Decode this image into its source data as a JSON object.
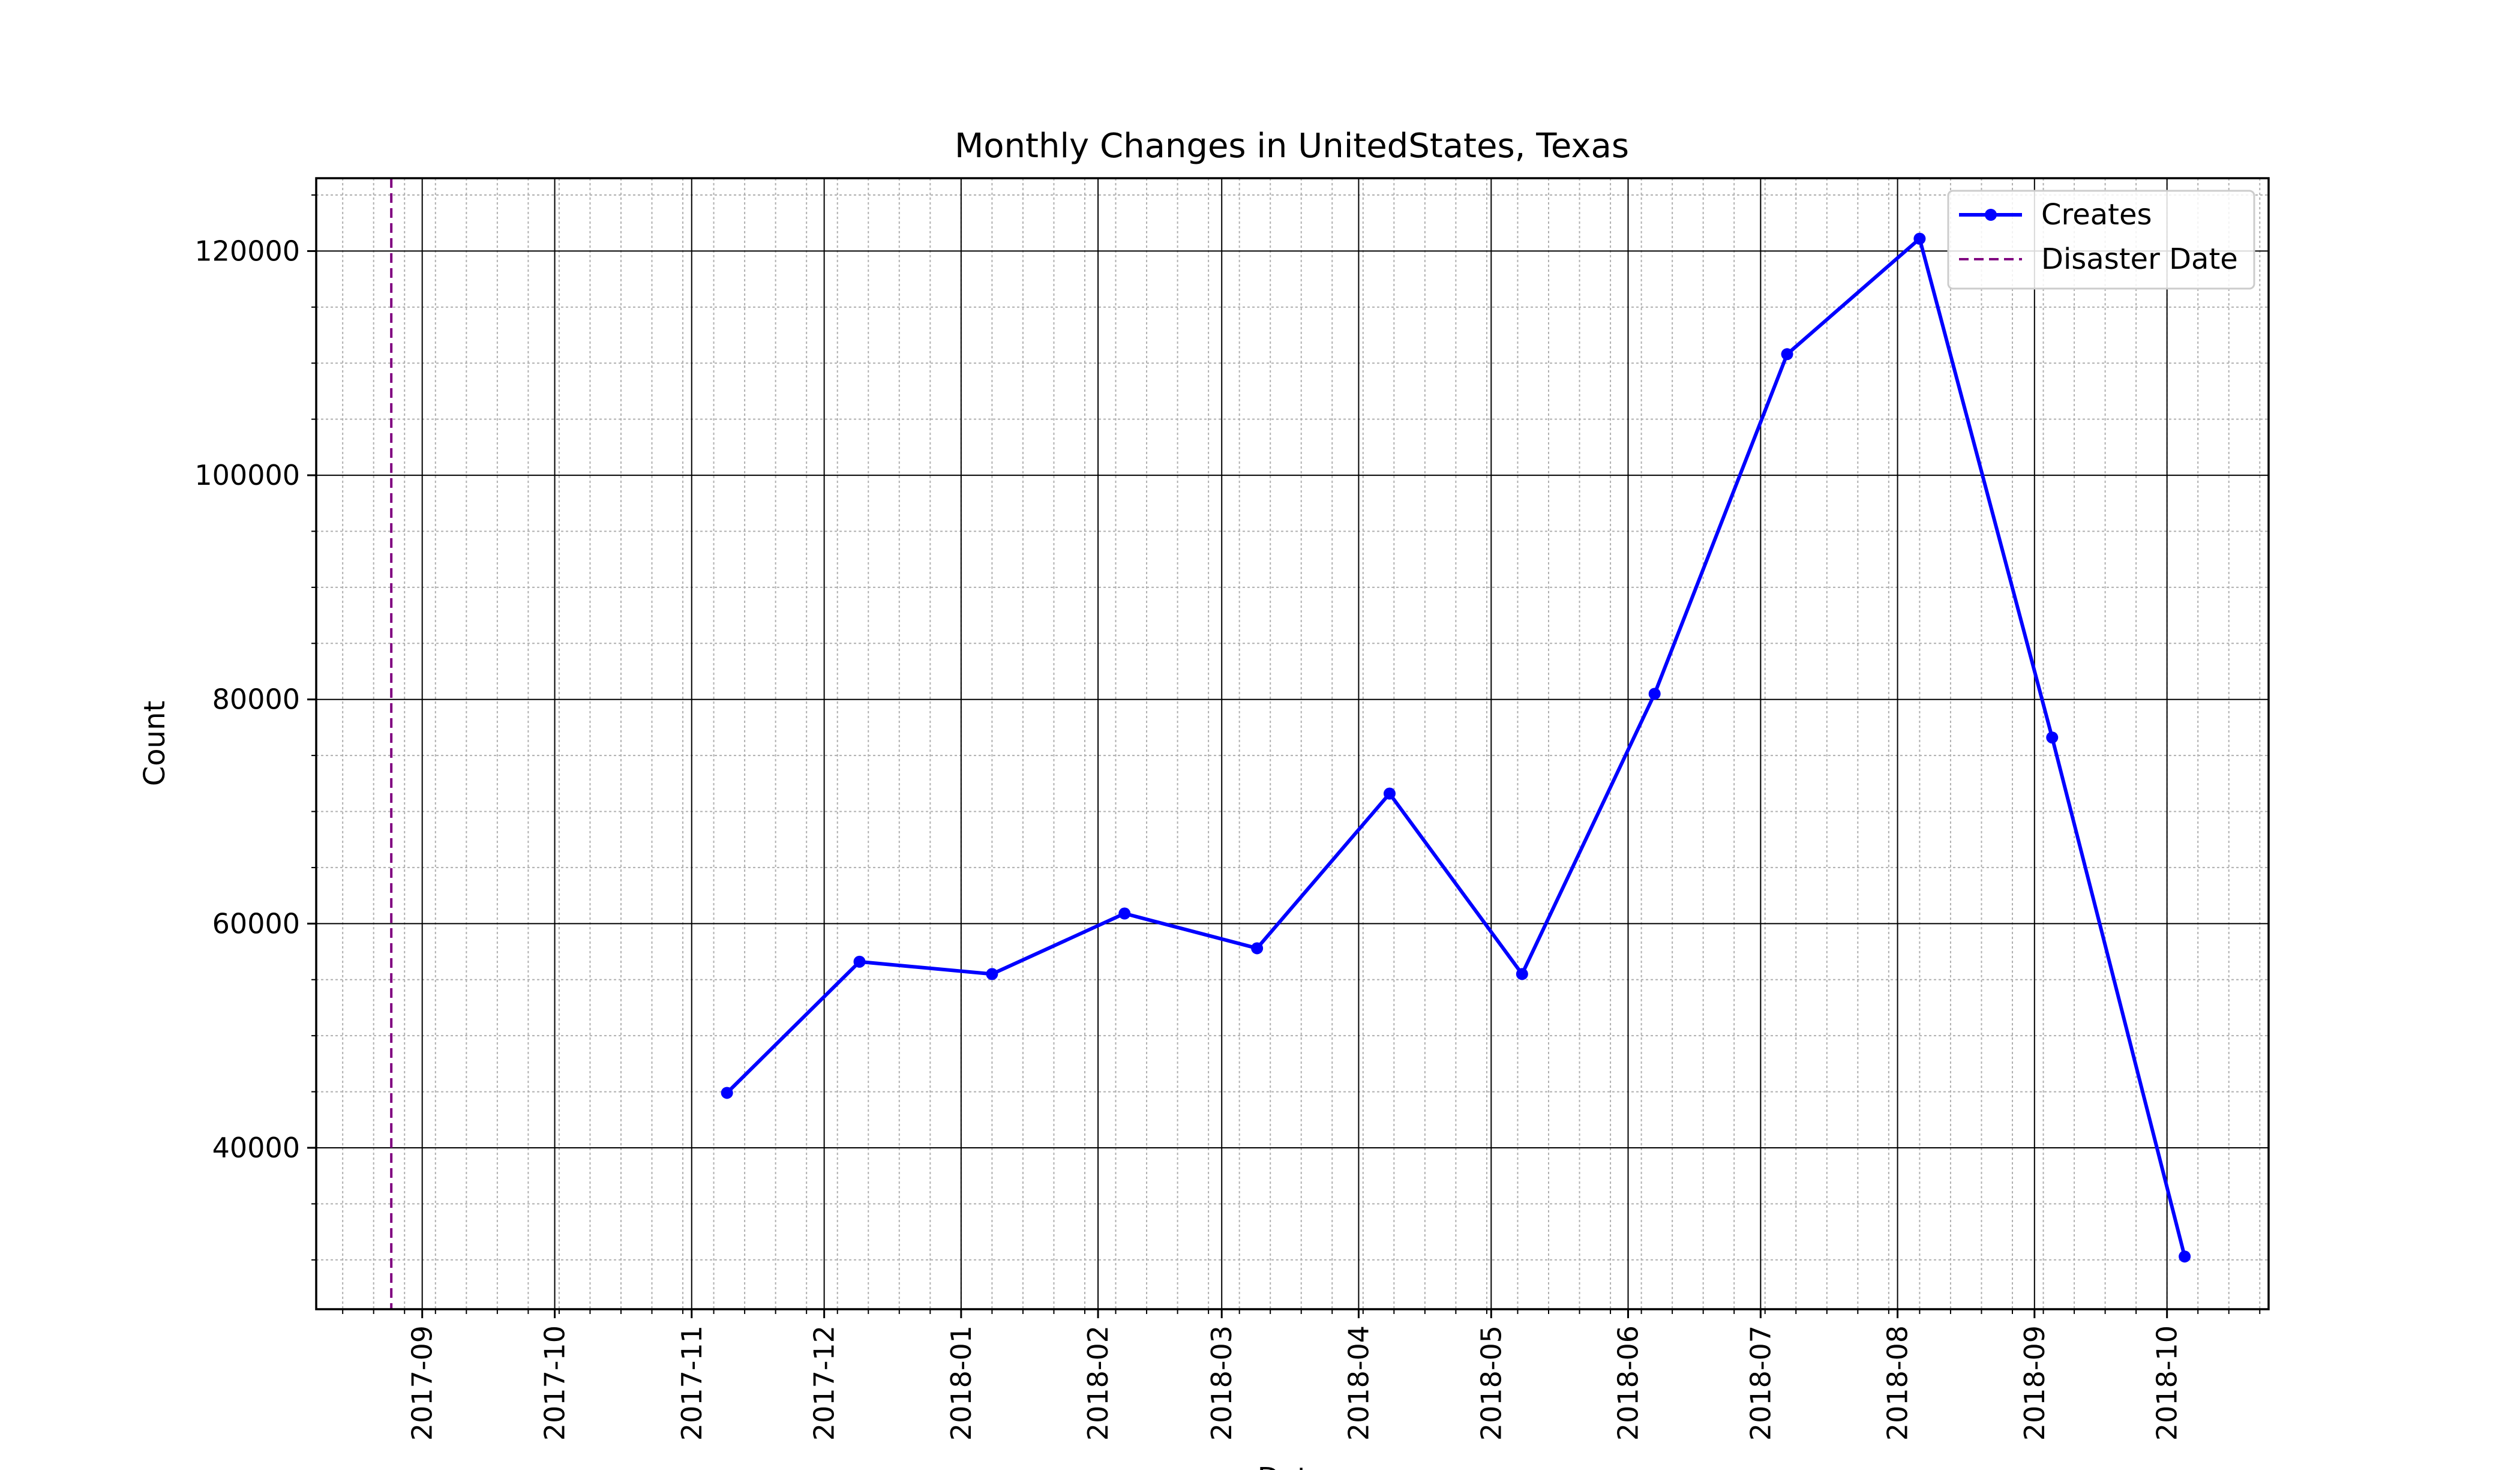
{
  "chart_data": {
    "type": "line",
    "title": "Monthly Changes in UnitedStates, Texas",
    "xlabel": "Date",
    "ylabel": "Count",
    "x_ticks": [
      "2017-09",
      "2017-10",
      "2017-11",
      "2017-12",
      "2018-01",
      "2018-02",
      "2018-03",
      "2018-04",
      "2018-05",
      "2018-06",
      "2018-07",
      "2018-08",
      "2018-09",
      "2018-10"
    ],
    "y_ticks": [
      40000,
      60000,
      80000,
      100000,
      120000
    ],
    "xlim": [
      "2017-08-08",
      "2018-10-24"
    ],
    "ylim": [
      25600,
      126500
    ],
    "grid": "major and minor",
    "legend_position": "top-right",
    "series": [
      {
        "name": "Creates",
        "color": "#0000ff",
        "marker": "circle",
        "x": [
          "2017-11-09",
          "2017-12-09",
          "2018-01-08",
          "2018-02-07",
          "2018-03-09",
          "2018-04-08",
          "2018-05-08",
          "2018-06-07",
          "2018-07-07",
          "2018-08-06",
          "2018-09-05",
          "2018-10-05"
        ],
        "values": [
          44900,
          56600,
          55500,
          60900,
          57800,
          71600,
          55500,
          80500,
          110800,
          121100,
          76600,
          30300
        ]
      }
    ],
    "reference_lines": [
      {
        "name": "Disaster Date",
        "date": "2017-08-25",
        "color": "#800080",
        "style": "dashed"
      }
    ]
  }
}
